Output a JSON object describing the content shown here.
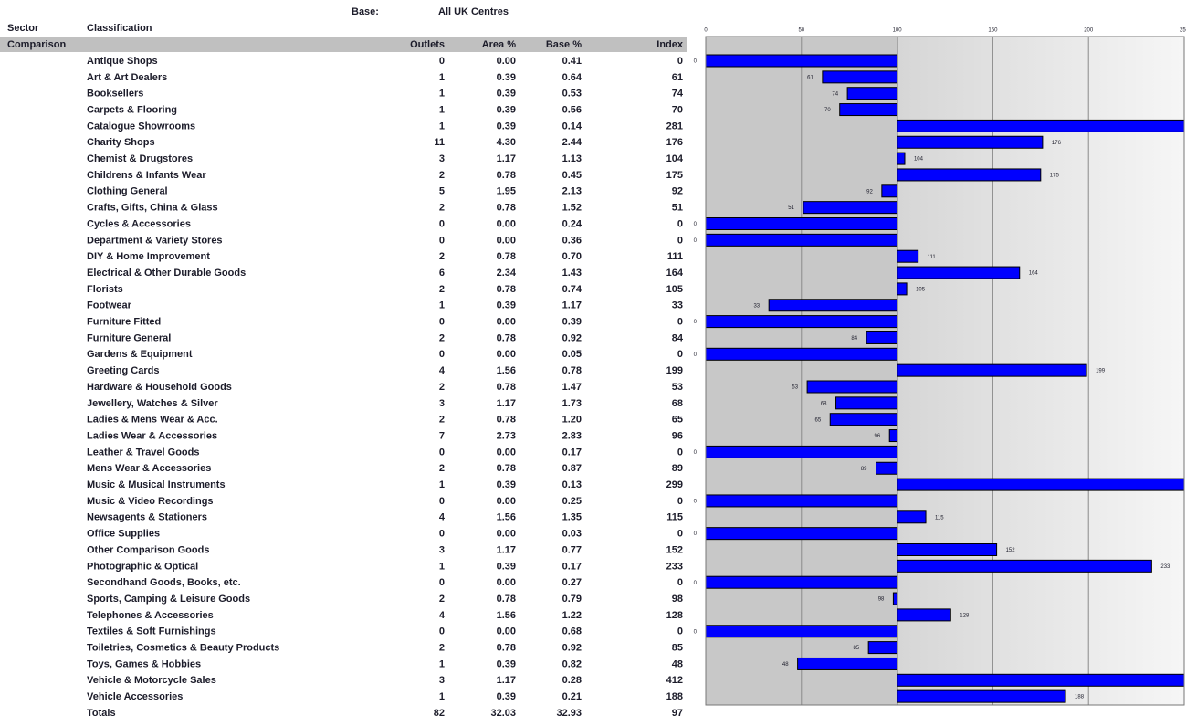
{
  "header": {
    "base_label": "Base:",
    "base_value": "All UK Centres",
    "sector_label": "Sector",
    "classification_label": "Classification"
  },
  "table": {
    "sector": "Comparison",
    "columns": [
      "Outlets",
      "Area %",
      "Base %",
      "Index"
    ],
    "rows": [
      [
        "Antique Shops",
        0,
        "0.00",
        "0.41",
        0
      ],
      [
        "Art & Art Dealers",
        1,
        "0.39",
        "0.64",
        61
      ],
      [
        "Booksellers",
        1,
        "0.39",
        "0.53",
        74
      ],
      [
        "Carpets & Flooring",
        1,
        "0.39",
        "0.56",
        70
      ],
      [
        "Catalogue Showrooms",
        1,
        "0.39",
        "0.14",
        281
      ],
      [
        "Charity Shops",
        11,
        "4.30",
        "2.44",
        176
      ],
      [
        "Chemist & Drugstores",
        3,
        "1.17",
        "1.13",
        104
      ],
      [
        "Childrens & Infants Wear",
        2,
        "0.78",
        "0.45",
        175
      ],
      [
        "Clothing General",
        5,
        "1.95",
        "2.13",
        92
      ],
      [
        "Crafts, Gifts, China & Glass",
        2,
        "0.78",
        "1.52",
        51
      ],
      [
        "Cycles & Accessories",
        0,
        "0.00",
        "0.24",
        0
      ],
      [
        "Department & Variety Stores",
        0,
        "0.00",
        "0.36",
        0
      ],
      [
        "DIY & Home Improvement",
        2,
        "0.78",
        "0.70",
        111
      ],
      [
        "Electrical & Other Durable Goods",
        6,
        "2.34",
        "1.43",
        164
      ],
      [
        "Florists",
        2,
        "0.78",
        "0.74",
        105
      ],
      [
        "Footwear",
        1,
        "0.39",
        "1.17",
        33
      ],
      [
        "Furniture Fitted",
        0,
        "0.00",
        "0.39",
        0
      ],
      [
        "Furniture General",
        2,
        "0.78",
        "0.92",
        84
      ],
      [
        "Gardens & Equipment",
        0,
        "0.00",
        "0.05",
        0
      ],
      [
        "Greeting Cards",
        4,
        "1.56",
        "0.78",
        199
      ],
      [
        "Hardware & Household Goods",
        2,
        "0.78",
        "1.47",
        53
      ],
      [
        "Jewellery, Watches & Silver",
        3,
        "1.17",
        "1.73",
        68
      ],
      [
        "Ladies & Mens Wear & Acc.",
        2,
        "0.78",
        "1.20",
        65
      ],
      [
        "Ladies Wear & Accessories",
        7,
        "2.73",
        "2.83",
        96
      ],
      [
        "Leather & Travel Goods",
        0,
        "0.00",
        "0.17",
        0
      ],
      [
        "Mens Wear & Accessories",
        2,
        "0.78",
        "0.87",
        89
      ],
      [
        "Music & Musical Instruments",
        1,
        "0.39",
        "0.13",
        299
      ],
      [
        "Music & Video Recordings",
        0,
        "0.00",
        "0.25",
        0
      ],
      [
        "Newsagents & Stationers",
        4,
        "1.56",
        "1.35",
        115
      ],
      [
        "Office Supplies",
        0,
        "0.00",
        "0.03",
        0
      ],
      [
        "Other Comparison Goods",
        3,
        "1.17",
        "0.77",
        152
      ],
      [
        "Photographic & Optical",
        1,
        "0.39",
        "0.17",
        233
      ],
      [
        "Secondhand Goods, Books, etc.",
        0,
        "0.00",
        "0.27",
        0
      ],
      [
        "Sports, Camping & Leisure Goods",
        2,
        "0.78",
        "0.79",
        98
      ],
      [
        "Telephones & Accessories",
        4,
        "1.56",
        "1.22",
        128
      ],
      [
        "Textiles & Soft Furnishings",
        0,
        "0.00",
        "0.68",
        0
      ],
      [
        "Toiletries, Cosmetics & Beauty Products",
        2,
        "0.78",
        "0.92",
        85
      ],
      [
        "Toys, Games & Hobbies",
        1,
        "0.39",
        "0.82",
        48
      ],
      [
        "Vehicle & Motorcycle Sales",
        3,
        "1.17",
        "0.28",
        412
      ],
      [
        "Vehicle Accessories",
        1,
        "0.39",
        "0.21",
        188
      ]
    ],
    "totals": [
      "Totals",
      82,
      "32.03",
      "32.93",
      97
    ]
  },
  "chart": {
    "xlim": [
      0,
      250
    ],
    "xticks": [
      0,
      50,
      100,
      150,
      200,
      250
    ],
    "baseline": 100,
    "bar_color": "#0000ff"
  }
}
